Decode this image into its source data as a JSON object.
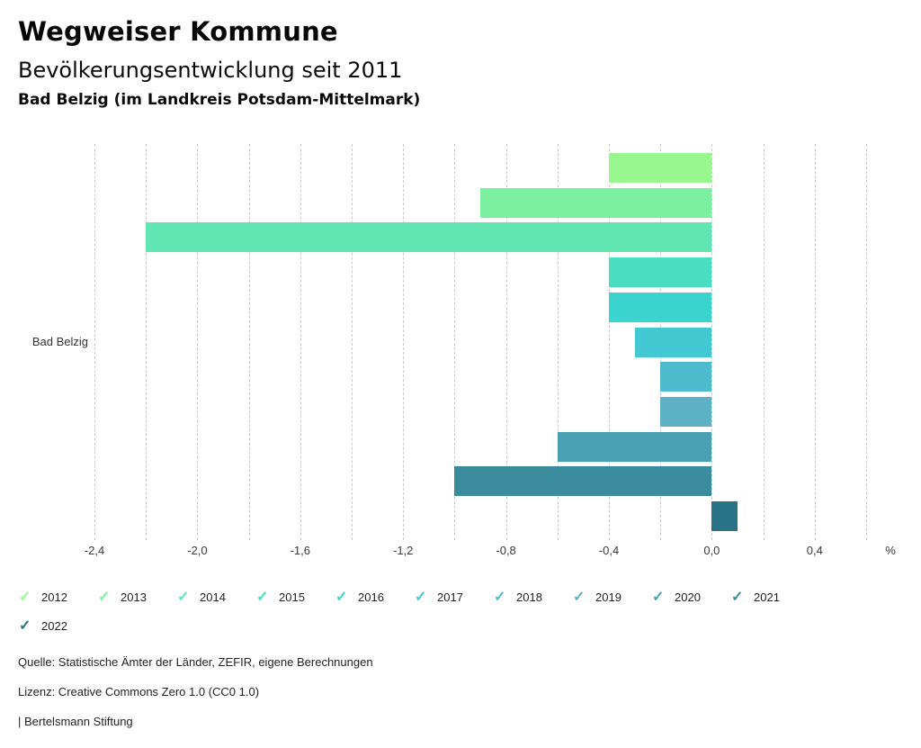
{
  "chart_data": {
    "type": "bar",
    "orientation": "horizontal",
    "title": "Wegweiser Kommune",
    "subtitle": "Bevölkerungsentwicklung seit 2011",
    "location_line": "Bad Belzig (im Landkreis Potsdam-Mittelmark)",
    "category_label": "Bad Belzig",
    "x_unit": "%",
    "xlim": [
      -2.4,
      0.6
    ],
    "grid_step": 0.2,
    "grid": true,
    "legend_position": "bottom",
    "check_icon": "✓",
    "xticks": [
      {
        "value": -2.4,
        "label": "-2,4"
      },
      {
        "value": -2.0,
        "label": "-2,0"
      },
      {
        "value": -1.6,
        "label": "-1,6"
      },
      {
        "value": -1.2,
        "label": "-1,2"
      },
      {
        "value": -0.8,
        "label": "-0,8"
      },
      {
        "value": -0.4,
        "label": "-0,4"
      },
      {
        "value": 0.0,
        "label": "0,0"
      },
      {
        "value": 0.4,
        "label": "0,4"
      }
    ],
    "series": [
      {
        "name": "2012",
        "value": -0.4,
        "color": "#98F78E"
      },
      {
        "name": "2013",
        "value": -0.9,
        "color": "#7DEFA0"
      },
      {
        "name": "2014",
        "value": -2.2,
        "color": "#61E6B3"
      },
      {
        "name": "2015",
        "value": -0.4,
        "color": "#49DDC2"
      },
      {
        "name": "2016",
        "value": -0.4,
        "color": "#3BD3CD"
      },
      {
        "name": "2017",
        "value": -0.3,
        "color": "#41C8D1"
      },
      {
        "name": "2018",
        "value": -0.2,
        "color": "#4DBBCB"
      },
      {
        "name": "2019",
        "value": -0.2,
        "color": "#5CB2C4"
      },
      {
        "name": "2020",
        "value": -0.6,
        "color": "#4AA0B3"
      },
      {
        "name": "2021",
        "value": -1.0,
        "color": "#3A8C9D"
      },
      {
        "name": "2022",
        "value": 0.1,
        "color": "#297386"
      }
    ]
  },
  "footer": {
    "source": "Quelle: Statistische Ämter der Länder, ZEFIR, eigene Berechnungen",
    "license": "Lizenz: Creative Commons Zero 1.0 (CC0 1.0)",
    "attribution": "| Bertelsmann Stiftung"
  }
}
